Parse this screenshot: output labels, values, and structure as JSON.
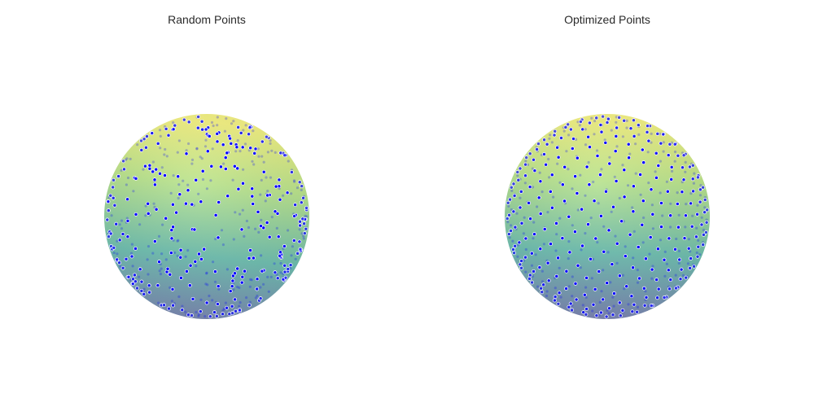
{
  "chart_data": [
    {
      "type": "scatter",
      "title": "Random Points",
      "surface": "sphere",
      "colorscale": [
        "#7e81b3",
        "#6fbfb0",
        "#b9e38c",
        "#f2f07f"
      ],
      "point_color": "#0000ff",
      "distribution": "random",
      "point_count": 500,
      "seed": 7
    },
    {
      "type": "scatter",
      "title": "Optimized Points",
      "surface": "sphere",
      "colorscale": [
        "#7e81b3",
        "#6fbfb0",
        "#b9e38c",
        "#f2f07f"
      ],
      "point_color": "#0000ff",
      "distribution": "uniform",
      "point_count": 500
    }
  ]
}
